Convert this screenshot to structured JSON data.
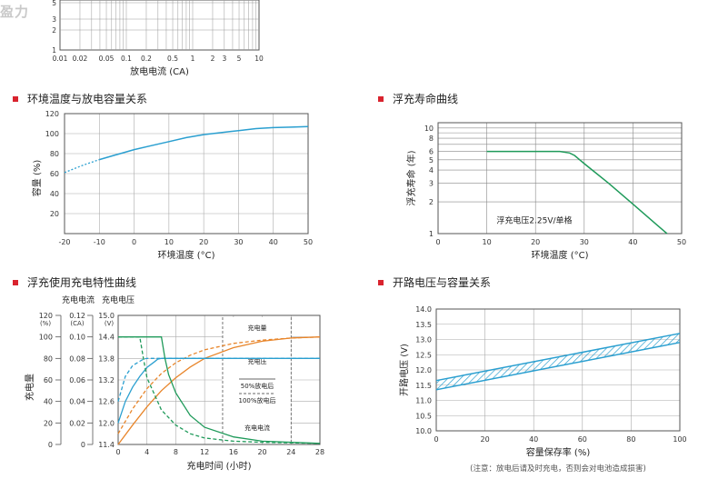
{
  "watermark": "盈力",
  "top_fragment": {
    "xlabel": "放电电流 (CA)",
    "x_ticks": [
      "0.01",
      "0.02",
      "0.05",
      "0.1",
      "0.2",
      "0.5",
      "1",
      "2",
      "3",
      "5",
      "10"
    ],
    "y_ticks": [
      "5",
      "3",
      "2",
      "1"
    ]
  },
  "sections": {
    "temp_capacity": "环境温度与放电容量关系",
    "float_life": "浮充寿命曲线",
    "float_charge": "浮充使用充电特性曲线",
    "ocv_capacity": "开路电压与容量关系"
  },
  "footnote": "(注意：放电后请及时充电，否则会对电池造成损害)",
  "colors": {
    "blue": "#2a9fd0",
    "orange": "#e8852a",
    "green": "#1f9a5a",
    "red": "#d9232e",
    "grid": "#888888"
  },
  "chart_data": [
    {
      "id": "temp_capacity",
      "type": "line",
      "xlabel": "环境温度 (°C)",
      "ylabel": "容量 (%)",
      "xlim": [
        -20,
        50
      ],
      "ylim": [
        0,
        120
      ],
      "x_ticks": [
        -20,
        -10,
        0,
        10,
        20,
        30,
        40,
        50
      ],
      "y_ticks": [
        20,
        40,
        60,
        80,
        100,
        120
      ],
      "grid": true,
      "series": [
        {
          "x": [
            -20,
            -15,
            -10,
            -5,
            0,
            5,
            10,
            15,
            20,
            25,
            30,
            35,
            40,
            45,
            50
          ],
          "y": [
            61,
            68,
            74,
            79,
            84,
            88,
            92,
            96,
            99,
            101,
            103,
            105,
            106,
            106.5,
            107
          ]
        }
      ]
    },
    {
      "id": "float_life",
      "type": "line",
      "xlabel": "环境温度 (°C)",
      "ylabel": "浮充寿命 (年)",
      "xlim": [
        0,
        50
      ],
      "ylim": [
        1,
        10
      ],
      "yscale": "log",
      "x_ticks": [
        0,
        10,
        20,
        30,
        40,
        50
      ],
      "y_ticks": [
        1,
        2,
        3,
        4,
        5,
        6,
        8,
        10
      ],
      "annotation": "浮充电压2.25V/单格",
      "grid": true,
      "series": [
        {
          "x": [
            10,
            20,
            25,
            27,
            28,
            30,
            35,
            40,
            45,
            47
          ],
          "y": [
            6,
            6,
            6,
            5.8,
            5.5,
            4.6,
            3.0,
            1.9,
            1.2,
            1.0
          ]
        }
      ]
    },
    {
      "id": "float_charge",
      "type": "line",
      "xlabel": "充电时间 (小时)",
      "ylabel": "充电量",
      "axis_title_current": "充电电流",
      "axis_title_voltage": "充电电压",
      "pct_unit": "(%)",
      "ca_unit": "(CA)",
      "v_unit": "(V)",
      "pct_ticks": [
        "120",
        "100",
        "80",
        "60",
        "40",
        "20",
        "0"
      ],
      "ca_ticks": [
        "0.12",
        "0.10",
        "0.08",
        "0.06",
        "0.04",
        "0.02",
        "0"
      ],
      "v_ticks": [
        "15.0",
        "14.4",
        "13.8",
        "13.2",
        "12.6",
        "12.0",
        "11.4"
      ],
      "x_ticks": [
        0,
        4,
        8,
        12,
        16,
        20,
        24,
        28
      ],
      "xlim": [
        0,
        28
      ],
      "ylim": [
        11.4,
        15.0
      ],
      "legend": {
        "charge": "充电量",
        "voltage": "充电压",
        "d50": "50%放电后",
        "d100": "100%放电后",
        "current": "充电电流"
      },
      "series": [
        {
          "name": "充电量",
          "discharge": "50%放电后",
          "x": [
            0,
            2,
            4,
            6,
            8,
            10,
            12,
            16,
            20,
            24,
            28
          ],
          "y": [
            10,
            33,
            52,
            66,
            76,
            83,
            88,
            94,
            97,
            99,
            100
          ]
        },
        {
          "name": "充电量",
          "discharge": "100%放电后",
          "x": [
            0,
            2,
            4,
            6,
            8,
            10,
            12,
            16,
            20,
            24,
            28
          ],
          "y": [
            0,
            18,
            35,
            50,
            62,
            72,
            80,
            90,
            96,
            99,
            100
          ]
        },
        {
          "name": "充电压",
          "discharge": "50%放电后",
          "x": [
            0,
            1,
            2,
            3,
            3.5,
            4,
            28
          ],
          "y": [
            12.6,
            13.3,
            13.6,
            13.72,
            13.78,
            13.8,
            13.8
          ]
        },
        {
          "name": "充电压",
          "discharge": "100%放电后",
          "x": [
            0,
            1,
            2,
            3,
            4,
            5,
            5.5,
            6,
            28
          ],
          "y": [
            12.0,
            12.6,
            13.0,
            13.3,
            13.55,
            13.7,
            13.78,
            13.8,
            13.8
          ]
        },
        {
          "name": "充电电流",
          "discharge": "50%放电后",
          "x": [
            0,
            3,
            3.5,
            4,
            6,
            8,
            10,
            12,
            16,
            20,
            28
          ],
          "y": [
            0.1,
            0.1,
            0.08,
            0.062,
            0.032,
            0.018,
            0.01,
            0.006,
            0.003,
            0.002,
            0.001
          ]
        },
        {
          "name": "充电电流",
          "discharge": "100%放电后",
          "x": [
            0,
            6,
            6.5,
            7,
            8,
            10,
            12,
            16,
            20,
            28
          ],
          "y": [
            0.1,
            0.1,
            0.08,
            0.065,
            0.048,
            0.027,
            0.016,
            0.007,
            0.003,
            0.001
          ]
        }
      ]
    },
    {
      "id": "ocv_capacity",
      "type": "area",
      "xlabel": "容量保存率 (%)",
      "ylabel": "开路电压 (V)",
      "xlim": [
        0,
        100
      ],
      "ylim": [
        10.0,
        14.0
      ],
      "x_ticks": [
        0,
        20,
        40,
        60,
        80,
        100
      ],
      "y_ticks": [
        "10.0",
        "10.5",
        "11.0",
        "11.5",
        "12.0",
        "12.5",
        "13.0",
        "13.5",
        "14.0"
      ],
      "grid": true,
      "band": {
        "x": [
          0,
          100
        ],
        "upper": [
          11.65,
          13.2
        ],
        "lower": [
          11.35,
          12.9
        ]
      }
    }
  ]
}
